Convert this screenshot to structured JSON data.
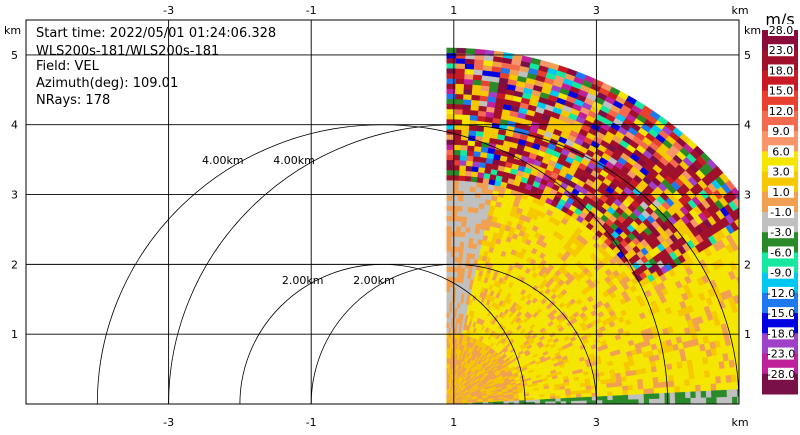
{
  "info": {
    "start_time": "Start time: 2022/05/01 01:24:06.328",
    "station": "WLS200s-181/WLS200s-181",
    "field": "Field: VEL",
    "azimuth": "Azimuth(deg): 109.01",
    "nrays": "NRays: 178"
  },
  "chart_data": {
    "type": "heatmap",
    "subtype": "radar-ppi",
    "x_unit": "km",
    "y_unit": "km",
    "xlim": [
      -5,
      5
    ],
    "ylim": [
      0,
      5.5
    ],
    "x_ticks": [
      "-3",
      "-1",
      "1",
      "3"
    ],
    "x_tick_values": [
      -3,
      -1,
      1,
      3
    ],
    "y_ticks": [
      "1",
      "2",
      "3",
      "4",
      "5"
    ],
    "y_tick_values": [
      1,
      2,
      3,
      4,
      5
    ],
    "grid": true,
    "range_rings": [
      {
        "label": "2.00km",
        "center_x": 0,
        "radius": 2
      },
      {
        "label": "4.00km",
        "center_x": 0,
        "radius": 4
      },
      {
        "label": "2.00km",
        "center_x": 1.0,
        "radius": 2
      },
      {
        "label": "4.00km",
        "center_x": 1.0,
        "radius": 4
      }
    ],
    "colorbar": {
      "unit": "m/s",
      "levels": [
        "28.0",
        "23.0",
        "18.0",
        "15.0",
        "12.0",
        "9.0",
        "6.0",
        "3.0",
        "1.0",
        "-1.0",
        "-3.0",
        "-6.0",
        "-9.0",
        "-12.0",
        "-15.0",
        "-18.0",
        "-23.0",
        "-28.0"
      ],
      "colors": [
        "#8b0a3c",
        "#a0102a",
        "#c81a24",
        "#e8402e",
        "#f46a4e",
        "#f8956a",
        "#f5e600",
        "#f5c800",
        "#f0a050",
        "#c0c0c0",
        "#2a8a2a",
        "#16e8a0",
        "#00c8f0",
        "#1e78f0",
        "#0000e0",
        "#a040c8",
        "#c0209a",
        "#7a1048"
      ]
    }
  }
}
